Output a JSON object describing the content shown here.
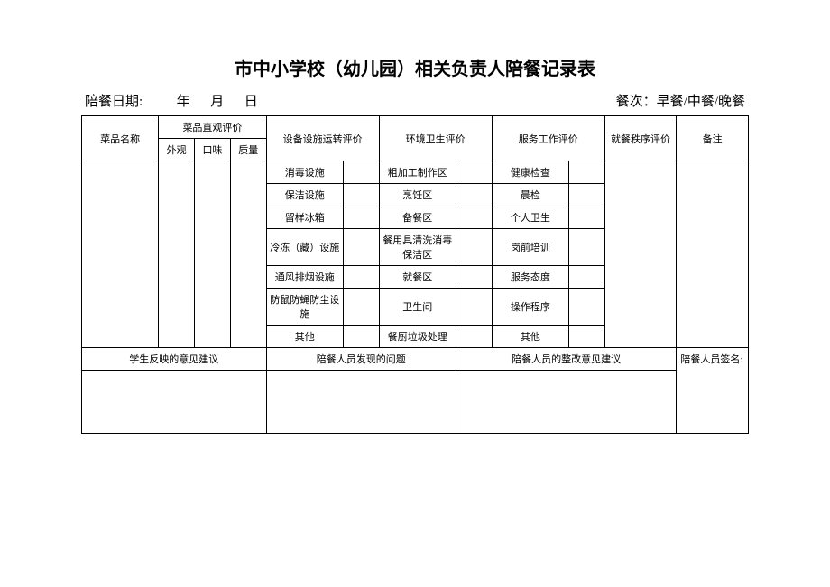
{
  "title": "市中小学校（幼儿园）相关负责人陪餐记录表",
  "meta": {
    "date_label": "陪餐日期:",
    "year": "年",
    "month": "月",
    "day": "日",
    "meal_label": "餐次：早餐/中餐/晚餐"
  },
  "headers": {
    "dish_name": "菜品名称",
    "dish_eval": "菜品直观评价",
    "appearance": "外观",
    "taste": "口味",
    "quality": "质量",
    "equipment": "设备设施运转评价",
    "environment": "环境卫生评价",
    "service": "服务工作评价",
    "dining_order": "就餐秩序评价",
    "remark": "备注"
  },
  "equipment_rows": [
    "消毒设施",
    "保洁设施",
    "留样冰箱",
    "冷冻（藏）设施",
    "通风排烟设施",
    "防鼠防蝇防尘设施",
    "其他"
  ],
  "environment_rows": [
    "粗加工制作区",
    "烹饪区",
    "备餐区",
    "餐用具清洗消毒保洁区",
    "就餐区",
    "卫生间",
    "餐厨垃圾处理"
  ],
  "service_rows": [
    "健康检查",
    "晨检",
    "个人卫生",
    "岗前培训",
    "服务态度",
    "操作程序",
    "其他"
  ],
  "footer": {
    "student_opinion": "学生反映的意见建议",
    "staff_problem": "陪餐人员发现的问题",
    "staff_suggestion": "陪餐人员的整改意见建议",
    "signature": "陪餐人员签名:"
  },
  "style": {
    "background": "#ffffff",
    "border_color": "#000000"
  }
}
